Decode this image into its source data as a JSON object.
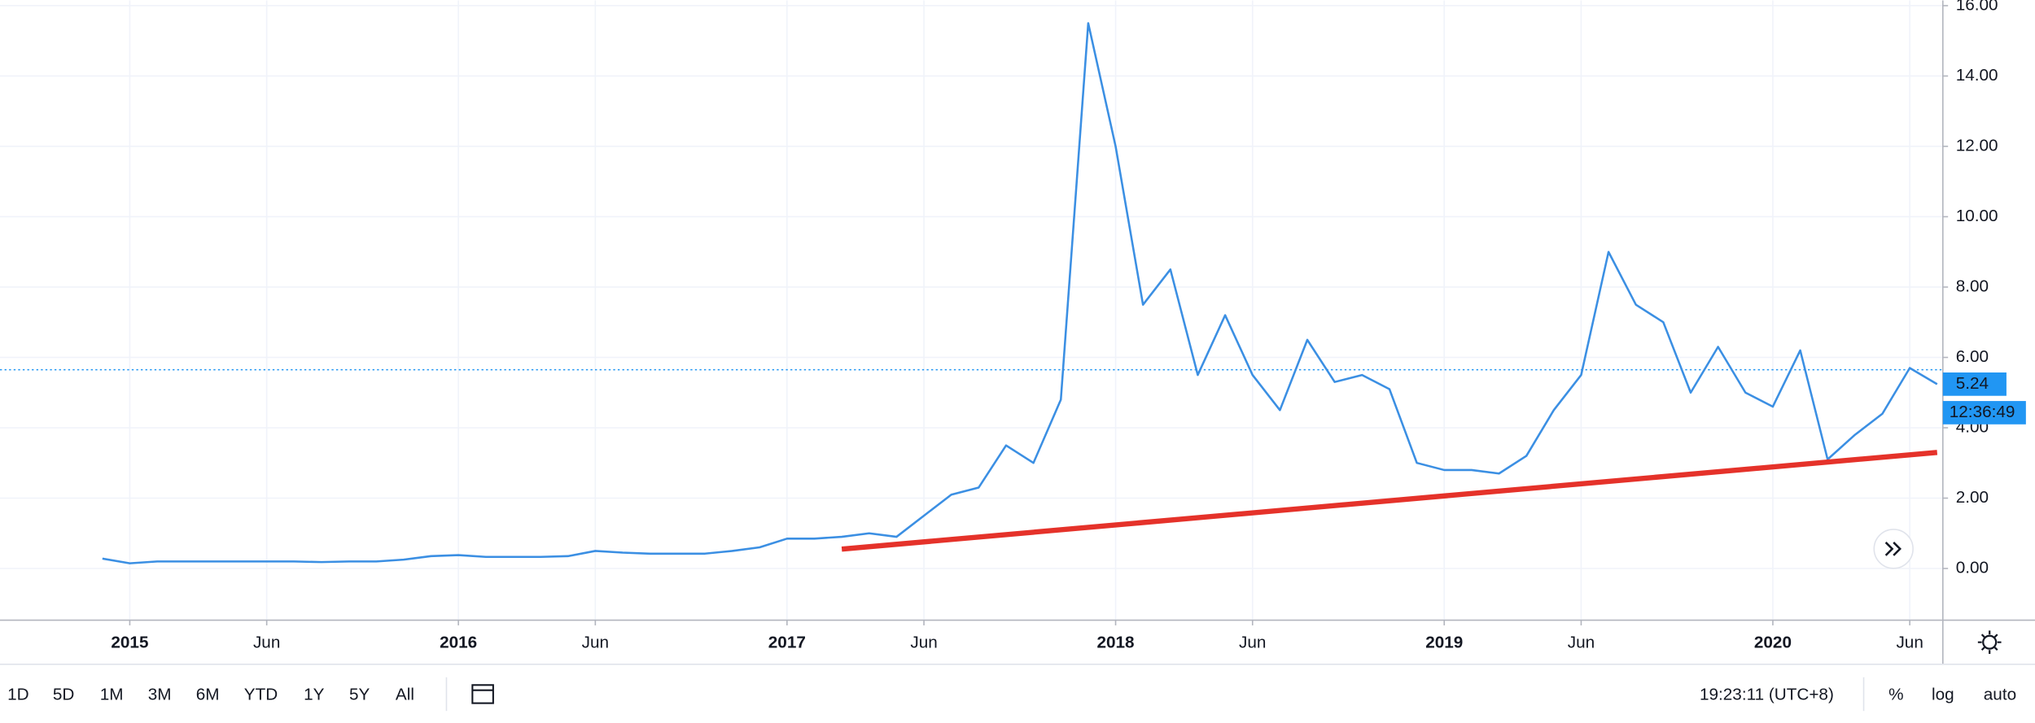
{
  "chart_data": {
    "type": "line",
    "x": [
      "2014-12",
      "2015-01",
      "2015-02",
      "2015-03",
      "2015-04",
      "2015-05",
      "2015-06",
      "2015-07",
      "2015-08",
      "2015-09",
      "2015-10",
      "2015-11",
      "2015-12",
      "2016-01",
      "2016-02",
      "2016-03",
      "2016-04",
      "2016-05",
      "2016-06",
      "2016-07",
      "2016-08",
      "2016-09",
      "2016-10",
      "2016-11",
      "2016-12",
      "2017-01",
      "2017-02",
      "2017-03",
      "2017-04",
      "2017-05",
      "2017-06",
      "2017-07",
      "2017-08",
      "2017-09",
      "2017-10",
      "2017-11",
      "2017-12",
      "2018-01",
      "2018-02",
      "2018-03",
      "2018-04",
      "2018-05",
      "2018-06",
      "2018-07",
      "2018-08",
      "2018-09",
      "2018-10",
      "2018-11",
      "2018-12",
      "2019-01",
      "2019-02",
      "2019-03",
      "2019-04",
      "2019-05",
      "2019-06",
      "2019-07",
      "2019-08",
      "2019-09",
      "2019-10",
      "2019-11",
      "2019-12",
      "2020-01",
      "2020-02",
      "2020-03",
      "2020-04",
      "2020-05",
      "2020-06",
      "2020-07"
    ],
    "series": [
      {
        "color": "#3b8fe3",
        "values": [
          0.28,
          0.15,
          0.2,
          0.2,
          0.2,
          0.2,
          0.2,
          0.2,
          0.18,
          0.2,
          0.2,
          0.25,
          0.35,
          0.38,
          0.33,
          0.33,
          0.33,
          0.35,
          0.5,
          0.45,
          0.42,
          0.42,
          0.42,
          0.5,
          0.6,
          0.85,
          0.85,
          0.9,
          1.0,
          0.9,
          1.5,
          2.1,
          2.3,
          3.5,
          3.0,
          4.8,
          15.5,
          12.0,
          7.5,
          8.5,
          5.5,
          7.2,
          5.5,
          4.5,
          6.5,
          5.3,
          5.5,
          5.1,
          3.0,
          2.8,
          2.8,
          2.7,
          3.2,
          4.5,
          5.5,
          9.0,
          7.5,
          7.0,
          5.0,
          6.3,
          5.0,
          4.6,
          6.2,
          3.1,
          3.8,
          4.4,
          5.7,
          5.24
        ]
      }
    ],
    "trendline": {
      "x": [
        "2017-03",
        "2020-07"
      ],
      "values": [
        0.55,
        3.3
      ],
      "color": "#e5322a"
    },
    "reference_line": 5.65,
    "last_price": 5.24,
    "countdown": "12:36:49",
    "ylim": [
      -1.47,
      16.15
    ],
    "yticks": [
      {
        "value": 0,
        "label": "0.00"
      },
      {
        "value": 2,
        "label": "2.00"
      },
      {
        "value": 4,
        "label": "4.00"
      },
      {
        "value": 6,
        "label": "6.00"
      },
      {
        "value": 8,
        "label": "8.00"
      },
      {
        "value": 10,
        "label": "10.00"
      },
      {
        "value": 12,
        "label": "12.00"
      },
      {
        "value": 14,
        "label": "14.00"
      },
      {
        "value": 16,
        "label": "16.00"
      }
    ],
    "xticks": [
      {
        "value": "2015-01",
        "label": "2015"
      },
      {
        "value": "2015-06",
        "label": "Jun"
      },
      {
        "value": "2016-01",
        "label": "2016"
      },
      {
        "value": "2016-06",
        "label": "Jun"
      },
      {
        "value": "2017-01",
        "label": "2017"
      },
      {
        "value": "2017-06",
        "label": "Jun"
      },
      {
        "value": "2018-01",
        "label": "2018"
      },
      {
        "value": "2018-06",
        "label": "Jun"
      },
      {
        "value": "2019-01",
        "label": "2019"
      },
      {
        "value": "2019-06",
        "label": "Jun"
      },
      {
        "value": "2020-01",
        "label": "2020"
      },
      {
        "value": "2020-06",
        "label": "Jun"
      }
    ],
    "grid": true,
    "log_scale": false
  },
  "toolbar": {
    "ranges": [
      "1D",
      "5D",
      "1M",
      "3M",
      "6M",
      "YTD",
      "1Y",
      "5Y",
      "All"
    ],
    "clock": "19:23:11 (UTC+8)",
    "percent": "%",
    "log": "log",
    "auto": "auto"
  }
}
